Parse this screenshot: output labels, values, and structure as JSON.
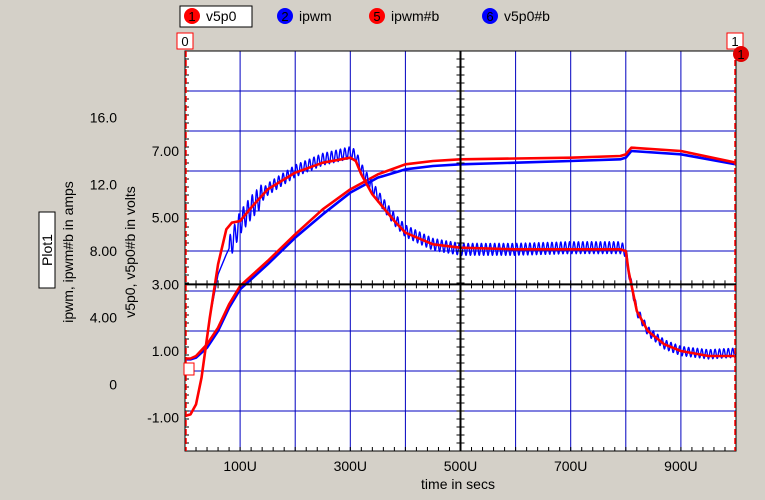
{
  "colors": {
    "background": "#d4d0c8",
    "plot_bg": "#ffffff",
    "grid": "#0000c0",
    "axis": "#000000",
    "frame": "#ff0000",
    "red": "#ff0000",
    "blue": "#0000ff"
  },
  "plot": {
    "name": "Plot1",
    "cursor_left_label": "0",
    "cursor_right_label": "1",
    "y_axis_left_title": "ipwm, ipwm#b in amps",
    "y_axis_right_title": "v5p0, v5p0#b in volts",
    "x_axis_title": "time in secs"
  },
  "legend": [
    {
      "num": "1",
      "name": "v5p0",
      "color": "#ff0000",
      "selected": true
    },
    {
      "num": "2",
      "name": "ipwm",
      "color": "#0000ff",
      "selected": false
    },
    {
      "num": "5",
      "name": "ipwm#b",
      "color": "#ff0000",
      "selected": false
    },
    {
      "num": "6",
      "name": "v5p0#b",
      "color": "#0000ff",
      "selected": false
    }
  ],
  "chart_data": {
    "type": "line",
    "xlim": [
      0,
      1000
    ],
    "x_unit": "U",
    "x_ticks": [
      "100U",
      "300U",
      "500U",
      "700U",
      "900U"
    ],
    "x_tick_values": [
      100,
      300,
      500,
      700,
      900
    ],
    "ylim_amps": [
      -4,
      20
    ],
    "y_ticks_amps": [
      "0",
      "4.00",
      "8.00",
      "12.0",
      "16.0"
    ],
    "y_tick_values_amps": [
      0,
      4,
      8,
      12,
      16
    ],
    "ylim_volts": [
      -2,
      10
    ],
    "y_ticks_volts": [
      "-1.00",
      "1.00",
      "3.00",
      "5.00",
      "7.00"
    ],
    "y_tick_values_volts": [
      -1,
      1,
      3,
      5,
      7
    ],
    "grid": true,
    "series": [
      {
        "name": "v5p0",
        "axis": "volts",
        "color": "#ff0000",
        "x": [
          0,
          10,
          20,
          30,
          45,
          60,
          75,
          85,
          100,
          120,
          150,
          200,
          250,
          300,
          310,
          320,
          340,
          360,
          380,
          400,
          450,
          500,
          600,
          700,
          780,
          790,
          800,
          805,
          820,
          840,
          870,
          900,
          950,
          1000
        ],
        "y": [
          -0.95,
          -0.9,
          -0.6,
          0.2,
          2.0,
          3.6,
          4.65,
          4.85,
          4.9,
          5.3,
          5.85,
          6.35,
          6.65,
          6.8,
          6.7,
          6.3,
          5.7,
          5.3,
          4.9,
          4.55,
          4.2,
          4.1,
          4.05,
          4.05,
          4.05,
          4.05,
          4.0,
          3.4,
          2.2,
          1.6,
          1.2,
          1.0,
          0.85,
          0.85
        ]
      },
      {
        "name": "ipwm",
        "axis": "amps",
        "color": "#0000ff",
        "x": [
          0,
          10,
          20,
          40,
          60,
          80,
          100,
          150,
          200,
          250,
          300,
          350,
          400,
          450,
          500,
          600,
          700,
          790,
          800,
          810,
          900,
          1000
        ],
        "y": [
          1.5,
          1.5,
          1.6,
          2.2,
          3.2,
          4.6,
          5.7,
          7.2,
          8.8,
          10.2,
          11.5,
          12.4,
          12.9,
          13.1,
          13.2,
          13.3,
          13.4,
          13.5,
          13.6,
          14.0,
          13.8,
          13.2
        ]
      },
      {
        "name": "ipwm#b",
        "axis": "amps",
        "color": "#ff0000",
        "x": [
          0,
          10,
          20,
          40,
          60,
          80,
          100,
          150,
          200,
          250,
          300,
          350,
          400,
          450,
          500,
          600,
          700,
          790,
          800,
          810,
          900,
          1000
        ],
        "y": [
          1.55,
          1.55,
          1.7,
          2.4,
          3.4,
          4.8,
          5.9,
          7.4,
          9.0,
          10.5,
          11.7,
          12.6,
          13.2,
          13.4,
          13.5,
          13.55,
          13.6,
          13.7,
          13.8,
          14.2,
          14.0,
          13.3
        ]
      },
      {
        "name": "v5p0#b",
        "axis": "volts",
        "color": "#0000ff",
        "ripple": true,
        "x": [
          0,
          10,
          20,
          30,
          45,
          60,
          75,
          85,
          100,
          120,
          150,
          200,
          250,
          300,
          310,
          320,
          340,
          360,
          380,
          400,
          450,
          500,
          600,
          700,
          780,
          790,
          800,
          805,
          820,
          840,
          870,
          900,
          950,
          1000
        ],
        "y": [
          -0.95,
          -0.9,
          -0.6,
          0.2,
          2.0,
          3.3,
          3.9,
          4.25,
          4.85,
          5.3,
          5.85,
          6.4,
          6.75,
          6.95,
          6.85,
          6.45,
          5.9,
          5.4,
          4.95,
          4.6,
          4.2,
          4.05,
          4.05,
          4.1,
          4.1,
          4.1,
          4.0,
          3.4,
          2.2,
          1.6,
          1.2,
          1.0,
          0.9,
          0.95
        ]
      }
    ]
  }
}
